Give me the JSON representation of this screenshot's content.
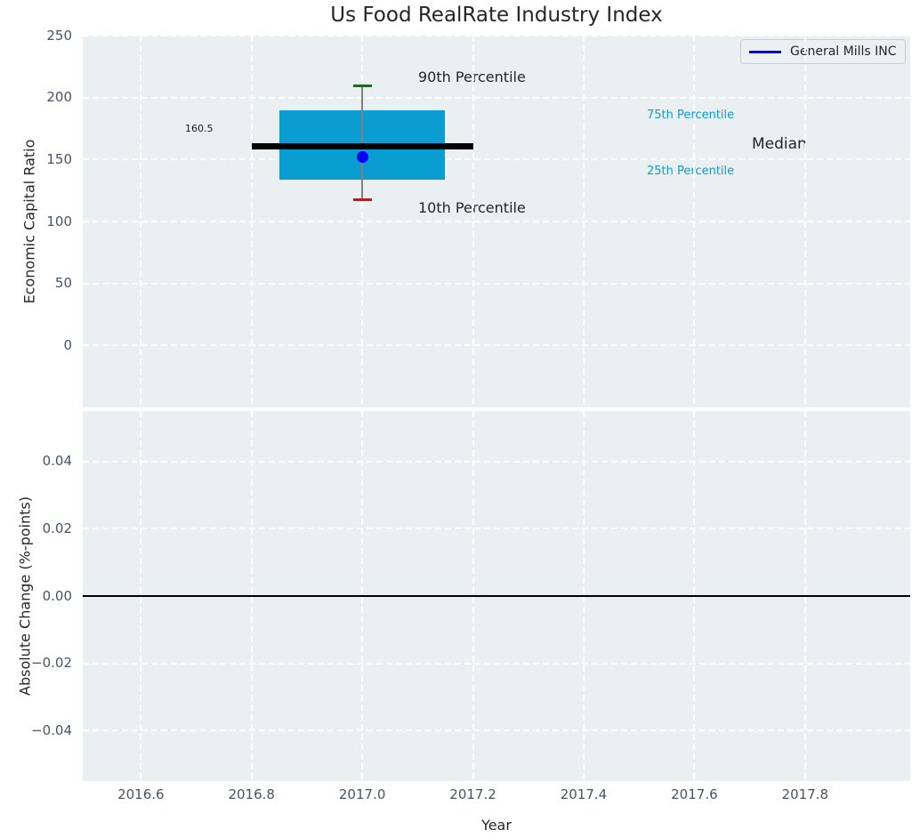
{
  "title": "Us Food RealRate Industry Index",
  "legend": {
    "label": "General Mills INC"
  },
  "colors": {
    "axes_bg": "#eaeff1",
    "grid": "#ffffff",
    "tick_label": "#44546a",
    "text": "#262626",
    "box_fill": "#0a9dd2",
    "accent_text": "#0a9dd2",
    "median_line": "#000000",
    "whisker": "#808080",
    "cap_top": "#008000",
    "cap_bottom": "#ff0000",
    "company_marker": "#0000ff",
    "zero_line": "#000000"
  },
  "chart_data": [
    {
      "type": "box",
      "title": "Us Food RealRate Industry Index",
      "ylabel": "Economic Capital Ratio",
      "xlabel": "Year",
      "xlim": [
        2016.495,
        2017.99
      ],
      "ylim": [
        -50,
        250
      ],
      "xticks": [
        2016.6,
        2016.8,
        2017.0,
        2017.2,
        2017.4,
        2017.6,
        2017.8
      ],
      "xtick_labels_shown": false,
      "yticks": [
        250,
        200,
        150,
        100,
        50,
        0
      ],
      "ytick_labels": [
        "250",
        "200",
        "150",
        "100",
        "50",
        "0"
      ],
      "grid": "white dashed",
      "legend_position": "upper right",
      "series": [
        {
          "name": "General Mills INC",
          "x": 2017.0,
          "value": 152,
          "marker": "dot"
        }
      ],
      "box": {
        "x": 2017.0,
        "p10": 117.5,
        "p25": 134,
        "median": 160.5,
        "p75": 190,
        "p90": 209.5,
        "box_width_years": 0.3,
        "median_width_years": 0.4
      },
      "annotations": {
        "p90": "90th Percentile",
        "p75": "75th Percentile",
        "median": "Median",
        "p25": "25th Percentile",
        "p10": "10th Percentile",
        "median_value_label": "160.5"
      }
    },
    {
      "type": "line",
      "ylabel": "Absolute Change (%-points)",
      "xlabel": "Year",
      "xlim": [
        2016.495,
        2017.99
      ],
      "ylim": [
        -0.055,
        0.055
      ],
      "xticks": [
        2016.6,
        2016.8,
        2017.0,
        2017.2,
        2017.4,
        2017.6,
        2017.8
      ],
      "xtick_labels": [
        "2016.6",
        "2016.8",
        "2017.0",
        "2017.2",
        "2017.4",
        "2017.6",
        "2017.8"
      ],
      "yticks": [
        0.04,
        0.02,
        0.0,
        -0.02,
        -0.04
      ],
      "ytick_labels": [
        "0.04",
        "0.02",
        "0.00",
        "−0.02",
        "−0.04"
      ],
      "zero_line_y": 0.0,
      "values": []
    }
  ]
}
